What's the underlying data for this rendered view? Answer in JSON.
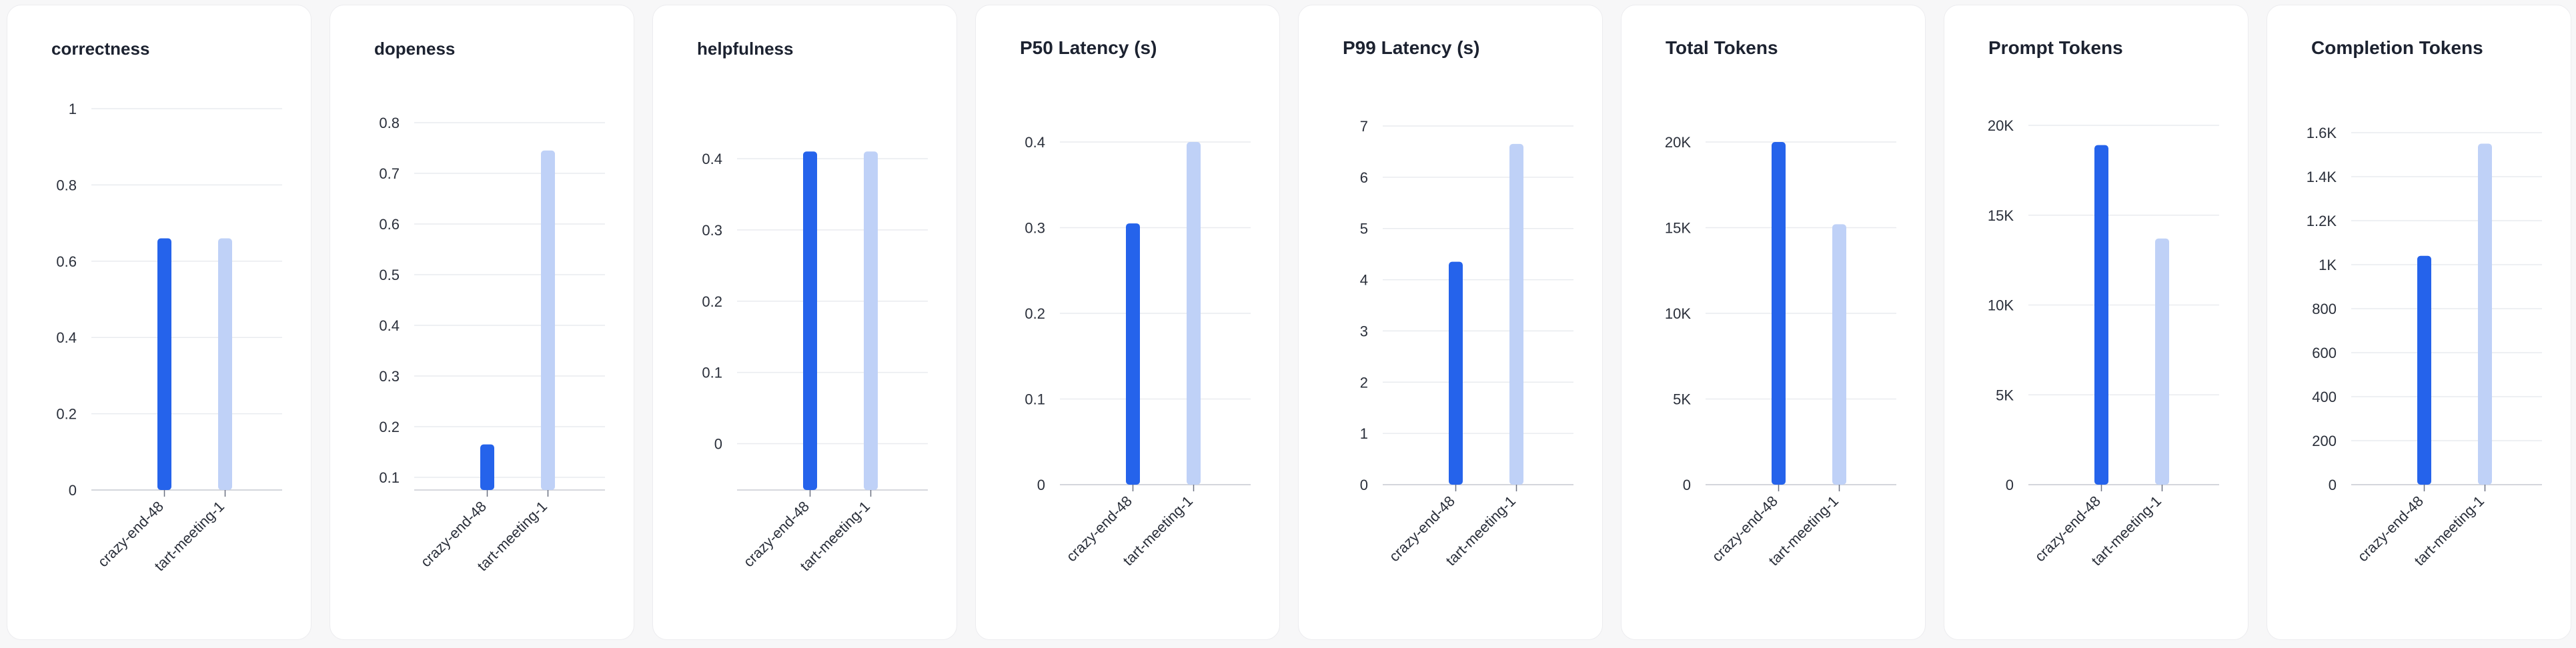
{
  "colors": {
    "primary": "#2563eb",
    "secondary": "#bfd1f7",
    "grid": "#e9ebef",
    "axis": "#c9ccd3"
  },
  "chart_data": [
    {
      "type": "bar",
      "title": "correctness",
      "categories": [
        "crazy-end-48",
        "tart-meeting-1"
      ],
      "series": [
        {
          "values": [
            0.66,
            0.66
          ]
        }
      ],
      "ylim": [
        0,
        1
      ],
      "ticks": [
        0,
        0.2,
        0.4,
        0.6,
        0.8,
        1
      ],
      "tick_labels": [
        "0",
        "0.2",
        "0.4",
        "0.6",
        "0.8",
        "1"
      ],
      "grid": true
    },
    {
      "type": "bar",
      "title": "dopeness",
      "categories": [
        "crazy-end-48",
        "tart-meeting-1"
      ],
      "series": [
        {
          "values": [
            0.165,
            0.745
          ]
        }
      ],
      "ylim": [
        0.075,
        0.8
      ],
      "ticks": [
        0.1,
        0.2,
        0.3,
        0.4,
        0.5,
        0.6,
        0.7,
        0.8
      ],
      "tick_labels": [
        "0.1",
        "0.2",
        "0.3",
        "0.4",
        "0.5",
        "0.6",
        "0.7",
        "0.8"
      ],
      "grid": true
    },
    {
      "type": "bar",
      "title": "helpfulness",
      "categories": [
        "crazy-end-48",
        "tart-meeting-1"
      ],
      "series": [
        {
          "values": [
            0.41,
            0.41
          ]
        }
      ],
      "ylim": [
        -0.065,
        0.4
      ],
      "ticks": [
        0,
        0.1,
        0.2,
        0.3,
        0.4
      ],
      "tick_labels": [
        "0",
        "0.1",
        "0.2",
        "0.3",
        "0.4"
      ],
      "grid": true
    },
    {
      "type": "bar",
      "title": "P50 Latency (s)",
      "categories": [
        "crazy-end-48",
        "tart-meeting-1"
      ],
      "series": [
        {
          "values": [
            0.305,
            0.4
          ]
        }
      ],
      "ylim": [
        0,
        0.4
      ],
      "ticks": [
        0,
        0.1,
        0.2,
        0.3,
        0.4
      ],
      "tick_labels": [
        "0",
        "0.1",
        "0.2",
        "0.3",
        "0.4"
      ],
      "grid": true
    },
    {
      "type": "bar",
      "title": "P99 Latency (s)",
      "categories": [
        "crazy-end-48",
        "tart-meeting-1"
      ],
      "series": [
        {
          "values": [
            4.35,
            6.65
          ]
        }
      ],
      "ylim": [
        0,
        7
      ],
      "ticks": [
        0,
        1,
        2,
        3,
        4,
        5,
        6,
        7
      ],
      "tick_labels": [
        "0",
        "1",
        "2",
        "3",
        "4",
        "5",
        "6",
        "7"
      ],
      "grid": true
    },
    {
      "type": "bar",
      "title": "Total Tokens",
      "categories": [
        "crazy-end-48",
        "tart-meeting-1"
      ],
      "series": [
        {
          "values": [
            20000,
            15200
          ]
        }
      ],
      "ylim": [
        0,
        20000
      ],
      "ticks": [
        0,
        5000,
        10000,
        15000,
        20000
      ],
      "tick_labels": [
        "0",
        "5K",
        "10K",
        "15K",
        "20K"
      ],
      "grid": true
    },
    {
      "type": "bar",
      "title": "Prompt Tokens",
      "categories": [
        "crazy-end-48",
        "tart-meeting-1"
      ],
      "series": [
        {
          "values": [
            18900,
            13700
          ]
        }
      ],
      "ylim": [
        0,
        20000
      ],
      "ticks": [
        0,
        5000,
        10000,
        15000,
        20000
      ],
      "tick_labels": [
        "0",
        "5K",
        "10K",
        "15K",
        "20K"
      ],
      "grid": true
    },
    {
      "type": "bar",
      "title": "Completion Tokens",
      "categories": [
        "crazy-end-48",
        "tart-meeting-1"
      ],
      "series": [
        {
          "values": [
            1040,
            1550
          ]
        }
      ],
      "ylim": [
        0,
        1600
      ],
      "ticks": [
        0,
        200,
        400,
        600,
        800,
        1000,
        1200,
        1400,
        1600
      ],
      "tick_labels": [
        "0",
        "200",
        "400",
        "600",
        "800",
        "1K",
        "1.2K",
        "1.4K",
        "1.6K"
      ],
      "grid": true
    }
  ]
}
